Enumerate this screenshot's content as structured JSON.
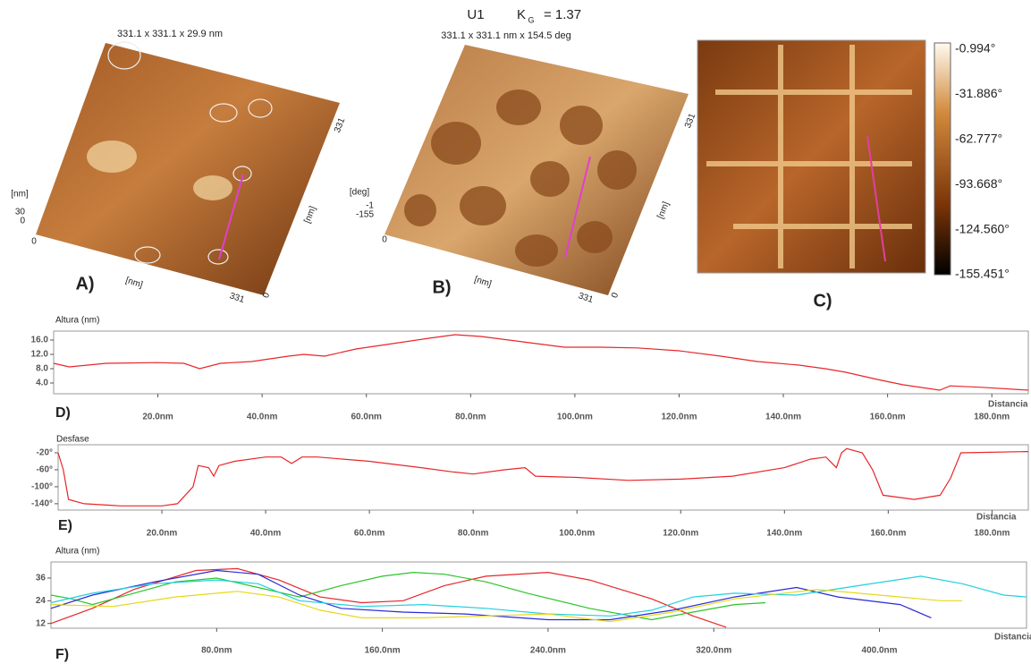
{
  "images": {
    "A": {
      "caption": "331.1 x 331.1 x 29.9 nm",
      "z_unit": "[nm]",
      "z_max": "30",
      "z_min": "0",
      "origin": "0",
      "x_unit": "[nm]",
      "x_end": "331",
      "x_start": "0",
      "y_unit": "[nm]",
      "y_end": "331",
      "panel_label": "A)"
    },
    "B": {
      "sample": "U1",
      "k_symbol": "K",
      "k_sub": "G",
      "k_value": "= 1.37",
      "caption": "331.1 x 331.1 nm x 154.5 deg",
      "z_unit": "[deg]",
      "z_max": "-1",
      "z_min": "-155",
      "origin": "0",
      "x_unit": "[nm]",
      "x_end": "331",
      "x_start": "0",
      "y_unit": "[nm]",
      "y_end": "331",
      "panel_label": "B)"
    },
    "C": {
      "colorbar": [
        "-0.994°",
        "-31.886°",
        "-62.777°",
        "-93.668°",
        "-124.560°",
        "-155.451°"
      ],
      "panel_label": "C)"
    }
  },
  "chart_data": [
    {
      "type": "line",
      "ylabel": "Altura (nm)",
      "xlabel": "Distancia",
      "panel_label": "D)",
      "xlim": [
        0,
        187
      ],
      "ylim": [
        1,
        18.5
      ],
      "xticks": [
        {
          "value": 20,
          "label": "20.0nm"
        },
        {
          "value": 40,
          "label": "40.0nm"
        },
        {
          "value": 60,
          "label": "60.0nm"
        },
        {
          "value": 80,
          "label": "80.0nm"
        },
        {
          "value": 100,
          "label": "100.0nm"
        },
        {
          "value": 120,
          "label": "120.0nm"
        },
        {
          "value": 140,
          "label": "140.0nm"
        },
        {
          "value": 160,
          "label": "160.0nm"
        },
        {
          "value": 180,
          "label": "180.0nm"
        }
      ],
      "yticks": [
        {
          "value": 4,
          "label": "4.0"
        },
        {
          "value": 8,
          "label": "8.0"
        },
        {
          "value": 12,
          "label": "12.0"
        },
        {
          "value": 16,
          "label": "16.0"
        }
      ],
      "series": [
        {
          "color": "#e8262a",
          "x": [
            0,
            3,
            10,
            20,
            25,
            28,
            32,
            38,
            45,
            48,
            52,
            58,
            65,
            72,
            77,
            82,
            90,
            98,
            105,
            112,
            120,
            128,
            135,
            143,
            148,
            152,
            158,
            163,
            170,
            172,
            178,
            187
          ],
          "values": [
            9.5,
            8.5,
            9.5,
            9.7,
            9.5,
            8,
            9.5,
            10,
            11.5,
            12,
            11.5,
            13.5,
            15,
            16.5,
            17.5,
            17,
            15.5,
            14,
            14,
            13.8,
            13,
            11.5,
            10,
            9,
            8,
            7,
            5,
            3.5,
            2,
            3.2,
            2.8,
            2
          ]
        }
      ]
    },
    {
      "type": "line",
      "ylabel": "Desfase",
      "xlabel": "Distancia",
      "panel_label": "E)",
      "xlim": [
        0,
        187
      ],
      "ylim": [
        -155,
        -1
      ],
      "xticks": [
        {
          "value": 20,
          "label": "20.0nm"
        },
        {
          "value": 40,
          "label": "40.0nm"
        },
        {
          "value": 60,
          "label": "60.0nm"
        },
        {
          "value": 80,
          "label": "80.0nm"
        },
        {
          "value": 100,
          "label": "100.0nm"
        },
        {
          "value": 120,
          "label": "120.0nm"
        },
        {
          "value": 140,
          "label": "140.0nm"
        },
        {
          "value": 160,
          "label": "160.0nm"
        },
        {
          "value": 180,
          "label": "180.0nm"
        }
      ],
      "yticks": [
        {
          "value": -20,
          "label": "-20°"
        },
        {
          "value": -60,
          "label": "-60°"
        },
        {
          "value": -100,
          "label": "-100°"
        },
        {
          "value": -140,
          "label": "-140°"
        }
      ],
      "series": [
        {
          "color": "#e8262a",
          "x": [
            0,
            1,
            2,
            5,
            12,
            20,
            23,
            26,
            27,
            29,
            30,
            31,
            34,
            40,
            43,
            45,
            47,
            50,
            60,
            70,
            76,
            80,
            86,
            90,
            92,
            100,
            110,
            120,
            130,
            140,
            145,
            148,
            150,
            151,
            152,
            155,
            157,
            159,
            165,
            170,
            172,
            174,
            187
          ],
          "values": [
            -20,
            -60,
            -130,
            -140,
            -145,
            -145,
            -140,
            -100,
            -50,
            -55,
            -75,
            -50,
            -40,
            -30,
            -30,
            -45,
            -30,
            -30,
            -40,
            -55,
            -65,
            -70,
            -60,
            -55,
            -75,
            -78,
            -85,
            -82,
            -75,
            -55,
            -35,
            -30,
            -55,
            -20,
            -10,
            -20,
            -60,
            -120,
            -130,
            -120,
            -80,
            -20,
            -17
          ]
        }
      ]
    },
    {
      "type": "line",
      "ylabel": "Altura (nm)",
      "xlabel": "Distancia",
      "panel_label": "F)",
      "xlim": [
        0,
        471
      ],
      "ylim": [
        9.5,
        44.5
      ],
      "xticks": [
        {
          "value": 80,
          "label": "80.0nm"
        },
        {
          "value": 160,
          "label": "160.0nm"
        },
        {
          "value": 240,
          "label": "240.0nm"
        },
        {
          "value": 320,
          "label": "320.0nm"
        },
        {
          "value": 400,
          "label": "400.0nm"
        }
      ],
      "yticks": [
        12,
        24,
        36
      ],
      "series": [
        {
          "color": "#e8262a",
          "x": [
            0,
            20,
            40,
            70,
            90,
            110,
            130,
            150,
            170,
            190,
            210,
            240,
            260,
            290,
            310,
            326
          ],
          "values": [
            12,
            20,
            30,
            40,
            41,
            35,
            26,
            23,
            24,
            32,
            37,
            39,
            35,
            25,
            16,
            10
          ]
        },
        {
          "color": "#2bc42b",
          "x": [
            0,
            10,
            20,
            40,
            60,
            80,
            100,
            120,
            140,
            160,
            175,
            190,
            210,
            230,
            260,
            290,
            310,
            330,
            345
          ],
          "values": [
            27,
            25,
            22,
            28,
            34,
            36,
            31,
            26,
            32,
            37,
            39,
            38,
            34,
            28,
            20,
            14,
            18,
            22,
            23
          ]
        },
        {
          "color": "#2a2ad6",
          "x": [
            0,
            20,
            50,
            80,
            100,
            120,
            140,
            170,
            200,
            240,
            270,
            300,
            330,
            360,
            380,
            410,
            425
          ],
          "values": [
            20,
            27,
            34,
            40,
            38,
            27,
            20,
            18,
            17,
            14,
            14,
            19,
            26,
            31,
            26,
            22,
            15
          ]
        },
        {
          "color": "#22d0e0",
          "x": [
            0,
            20,
            50,
            80,
            100,
            120,
            150,
            180,
            210,
            240,
            270,
            290,
            310,
            330,
            360,
            390,
            420,
            440,
            460,
            471
          ],
          "values": [
            23,
            28,
            33,
            35,
            33,
            24,
            21,
            22,
            20,
            17,
            16,
            19,
            26,
            28,
            27,
            32,
            37,
            33,
            27,
            26
          ]
        },
        {
          "color": "#e8d818",
          "x": [
            0,
            30,
            60,
            90,
            110,
            130,
            150,
            180,
            210,
            240,
            270,
            300,
            330,
            370,
            390,
            410,
            430,
            440
          ],
          "values": [
            22,
            21,
            26,
            29,
            26,
            19,
            15,
            15,
            16,
            17,
            13,
            18,
            25,
            30,
            28,
            26,
            24,
            24
          ]
        }
      ]
    }
  ]
}
